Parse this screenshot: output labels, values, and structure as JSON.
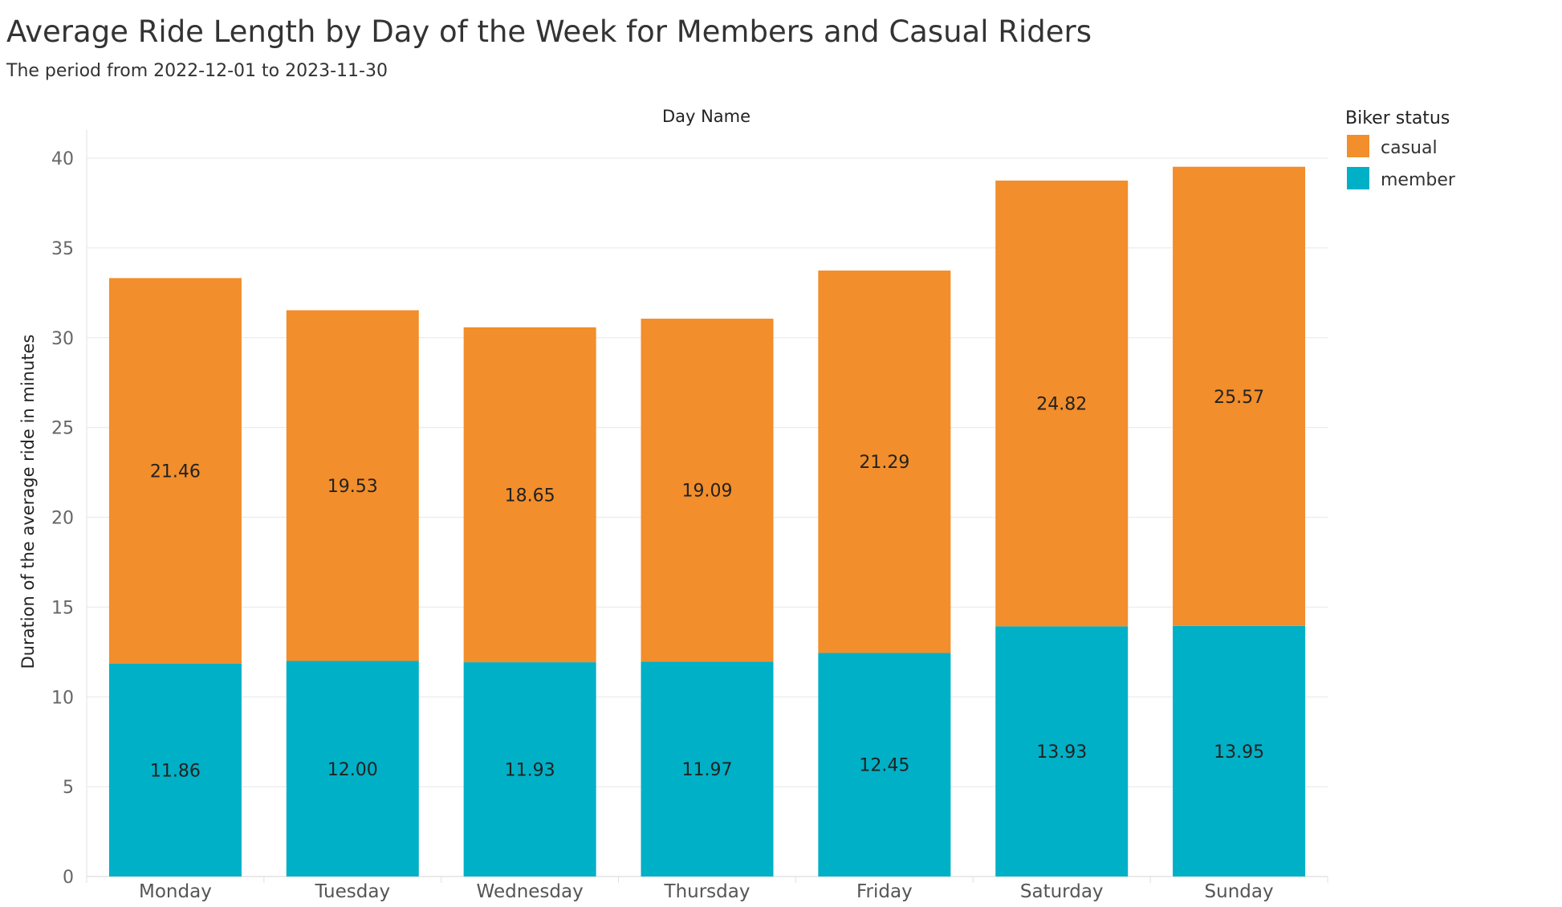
{
  "chart_data": {
    "type": "bar",
    "stacked": true,
    "title": "Average Ride Length by Day of the Week for Members and Casual Riders",
    "subtitle": "The period from 2022-12-01 to 2023-11-30",
    "column_header": "Day Name",
    "ylabel": "Duration of the average ride in minutes",
    "ylim": [
      0,
      40
    ],
    "yticks": [
      0,
      5,
      10,
      15,
      20,
      25,
      30,
      35,
      40
    ],
    "grid": true,
    "legend": {
      "title": "Biker status",
      "position": "top-right"
    },
    "categories": [
      "Monday",
      "Tuesday",
      "Wednesday",
      "Thursday",
      "Friday",
      "Saturday",
      "Sunday"
    ],
    "series": [
      {
        "name": "member",
        "color": "#00b0c6",
        "values": [
          11.86,
          12.0,
          11.93,
          11.97,
          12.45,
          13.93,
          13.95
        ],
        "labels": [
          "11.86",
          "12.00",
          "11.93",
          "11.97",
          "12.45",
          "13.93",
          "13.95"
        ]
      },
      {
        "name": "casual",
        "color": "#f28e2b",
        "values": [
          21.46,
          19.53,
          18.65,
          19.09,
          21.29,
          24.82,
          25.57
        ],
        "labels": [
          "21.46",
          "19.53",
          "18.65",
          "19.09",
          "21.29",
          "24.82",
          "25.57"
        ]
      }
    ],
    "legend_order": [
      "casual",
      "member"
    ]
  }
}
